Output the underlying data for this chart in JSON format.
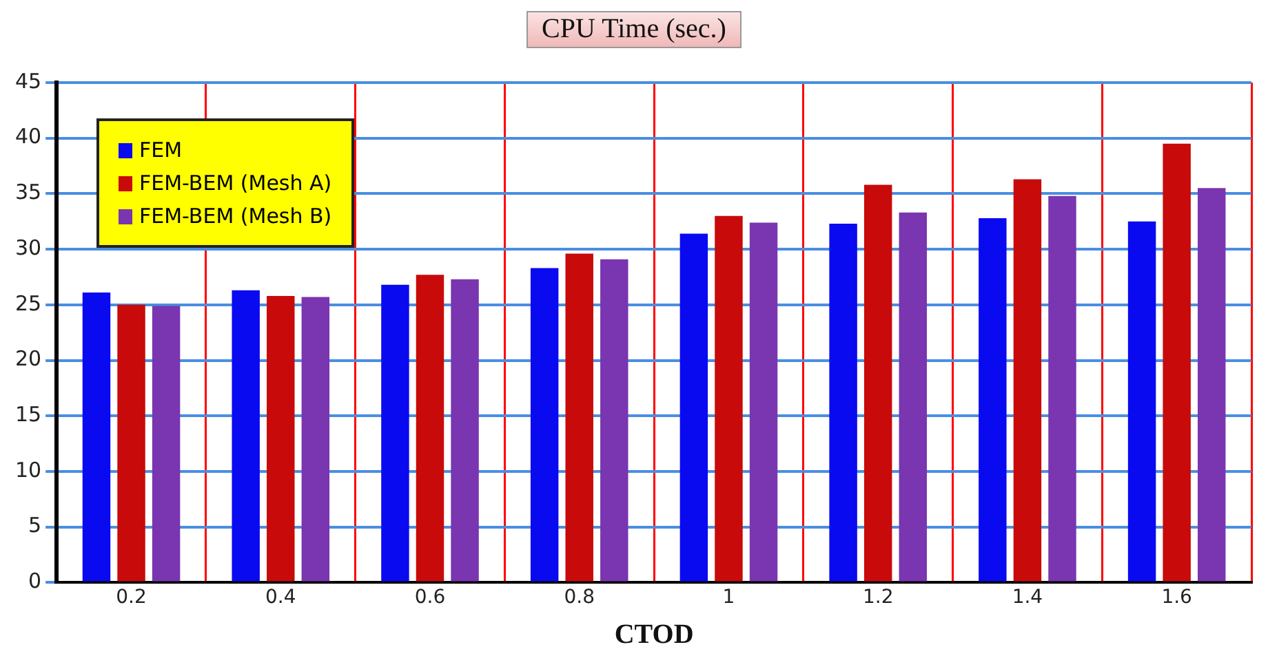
{
  "chart_data": {
    "type": "bar",
    "title": "CPU Time (sec.)",
    "xlabel": "CTOD",
    "categories": [
      "0.2",
      "0.4",
      "0.6",
      "0.8",
      "1",
      "1.2",
      "1.4",
      "1.6"
    ],
    "series": [
      {
        "name": "FEM",
        "color": "#0a0af0",
        "values": [
          26.1,
          26.3,
          26.8,
          28.3,
          31.4,
          32.3,
          32.8,
          32.5
        ]
      },
      {
        "name": "FEM-BEM (Mesh A)",
        "color": "#c80a0a",
        "values": [
          25.0,
          25.8,
          27.7,
          29.6,
          33.0,
          35.8,
          36.3,
          39.5
        ]
      },
      {
        "name": "FEM-BEM (Mesh B)",
        "color": "#7a35b0",
        "values": [
          24.9,
          25.7,
          27.3,
          29.1,
          32.4,
          33.3,
          34.8,
          35.5
        ]
      }
    ],
    "ylim": [
      0,
      45
    ],
    "yticks": [
      0,
      5,
      10,
      15,
      20,
      25,
      30,
      35,
      40,
      45
    ],
    "grid": true,
    "legend": "top left"
  }
}
